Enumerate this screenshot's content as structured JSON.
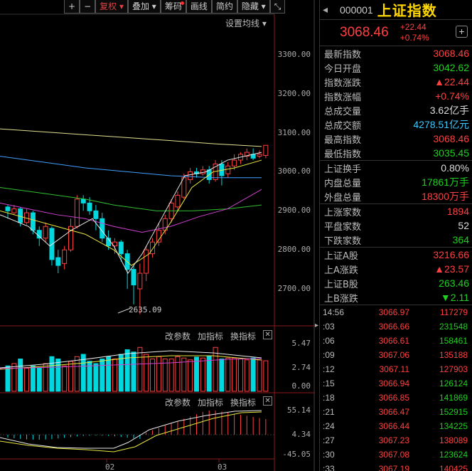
{
  "toolbar": {
    "buttons": [
      {
        "label": "+",
        "active": false
      },
      {
        "label": "−",
        "active": false
      },
      {
        "label": "复权 ▾",
        "active": true
      },
      {
        "label": "叠加 ▾",
        "active": false
      },
      {
        "label": "筹码",
        "active": false,
        "dot": true
      },
      {
        "label": "画线",
        "active": false
      },
      {
        "label": "简约",
        "active": false
      },
      {
        "label": "隐藏 ▾",
        "active": false
      },
      {
        "label": "⤡",
        "active": false
      }
    ]
  },
  "chart": {
    "set_ma_label": "设置均线 ▾",
    "price_ticks": [
      "3300.00",
      "3200.00",
      "3100.00",
      "3000.00",
      "2900.00",
      "2800.00",
      "2700.00"
    ],
    "low_label": "2635.09",
    "volume_ticks": [
      "5.47",
      "2.74",
      "0.00"
    ],
    "macd_ticks": [
      "55.14",
      "4.34",
      "-45.05"
    ],
    "x_labels": [
      "02",
      "03"
    ],
    "indicator_bar_1": {
      "a": "改参数",
      "b": "加指标",
      "c": "换指标"
    },
    "indicator_bar_2": {
      "a": "改参数",
      "b": "加指标",
      "c": "换指标"
    },
    "colors": {
      "up": "#ff4040",
      "down": "#00d8e0",
      "ma5": "#e8e8e8",
      "ma10": "#e8e840",
      "ma20": "#d040d0",
      "ma30": "#30c030",
      "ma60": "#40a0ff",
      "ma120": "#e0e090"
    }
  },
  "quote": {
    "code": "000001",
    "name": "上证指数",
    "price": "3068.46",
    "change": "+22.44",
    "change_pct": "+0.74%",
    "rows": [
      {
        "label": "最新指数",
        "value": "3068.46",
        "color": "red"
      },
      {
        "label": "今日开盘",
        "value": "3042.62",
        "color": "green"
      },
      {
        "label": "指数涨跌",
        "value": "▲22.44",
        "color": "red"
      },
      {
        "label": "指数涨幅",
        "value": "+0.74%",
        "color": "red"
      },
      {
        "label": "总成交量",
        "value": "3.62亿手",
        "color": "white"
      },
      {
        "label": "总成交额",
        "value": "4278.51亿元",
        "color": "cyan"
      },
      {
        "label": "最高指数",
        "value": "3068.46",
        "color": "red"
      },
      {
        "label": "最低指数",
        "value": "3035.45",
        "color": "green"
      }
    ],
    "rows2": [
      {
        "label": "上证换手",
        "value": "0.80%",
        "color": "white"
      },
      {
        "label": "内盘总量",
        "value": "17861万手",
        "color": "green"
      },
      {
        "label": "外盘总量",
        "value": "18300万手",
        "color": "red"
      }
    ],
    "rows3": [
      {
        "label": "上涨家数",
        "value": "1894",
        "color": "red"
      },
      {
        "label": "平盘家数",
        "value": "52",
        "color": "white"
      },
      {
        "label": "下跌家数",
        "value": "364",
        "color": "green"
      }
    ],
    "rows4": [
      {
        "label": "上证A股",
        "value": "3216.66",
        "color": "red"
      },
      {
        "label": "上A涨跌",
        "value": "▲23.57",
        "color": "red"
      },
      {
        "label": "上证B股",
        "value": "263.46",
        "color": "green"
      },
      {
        "label": "上B涨跌",
        "value": "▼2.11",
        "color": "green"
      }
    ],
    "ticks": [
      {
        "time": "14:56",
        "price": "3066.97",
        "vol": "117279",
        "vcolor": "red"
      },
      {
        "time": ":03",
        "price": "3066.66",
        "vol": "231548",
        "vcolor": "green"
      },
      {
        "time": ":06",
        "price": "3066.61",
        "vol": "158461",
        "vcolor": "green"
      },
      {
        "time": ":09",
        "price": "3067.06",
        "vol": "135188",
        "vcolor": "red"
      },
      {
        "time": ":12",
        "price": "3067.11",
        "vol": "127903",
        "vcolor": "red"
      },
      {
        "time": ":15",
        "price": "3066.94",
        "vol": "126124",
        "vcolor": "green"
      },
      {
        "time": ":18",
        "price": "3066.85",
        "vol": "141869",
        "vcolor": "green"
      },
      {
        "time": ":21",
        "price": "3066.47",
        "vol": "152915",
        "vcolor": "green"
      },
      {
        "time": ":24",
        "price": "3066.44",
        "vol": "134225",
        "vcolor": "green"
      },
      {
        "time": ":27",
        "price": "3067.23",
        "vol": "138089",
        "vcolor": "red"
      },
      {
        "time": ":30",
        "price": "3067.08",
        "vol": "123624",
        "vcolor": "green"
      },
      {
        "time": ":33",
        "price": "3067.19",
        "vol": "140425",
        "vcolor": "red"
      }
    ]
  }
}
